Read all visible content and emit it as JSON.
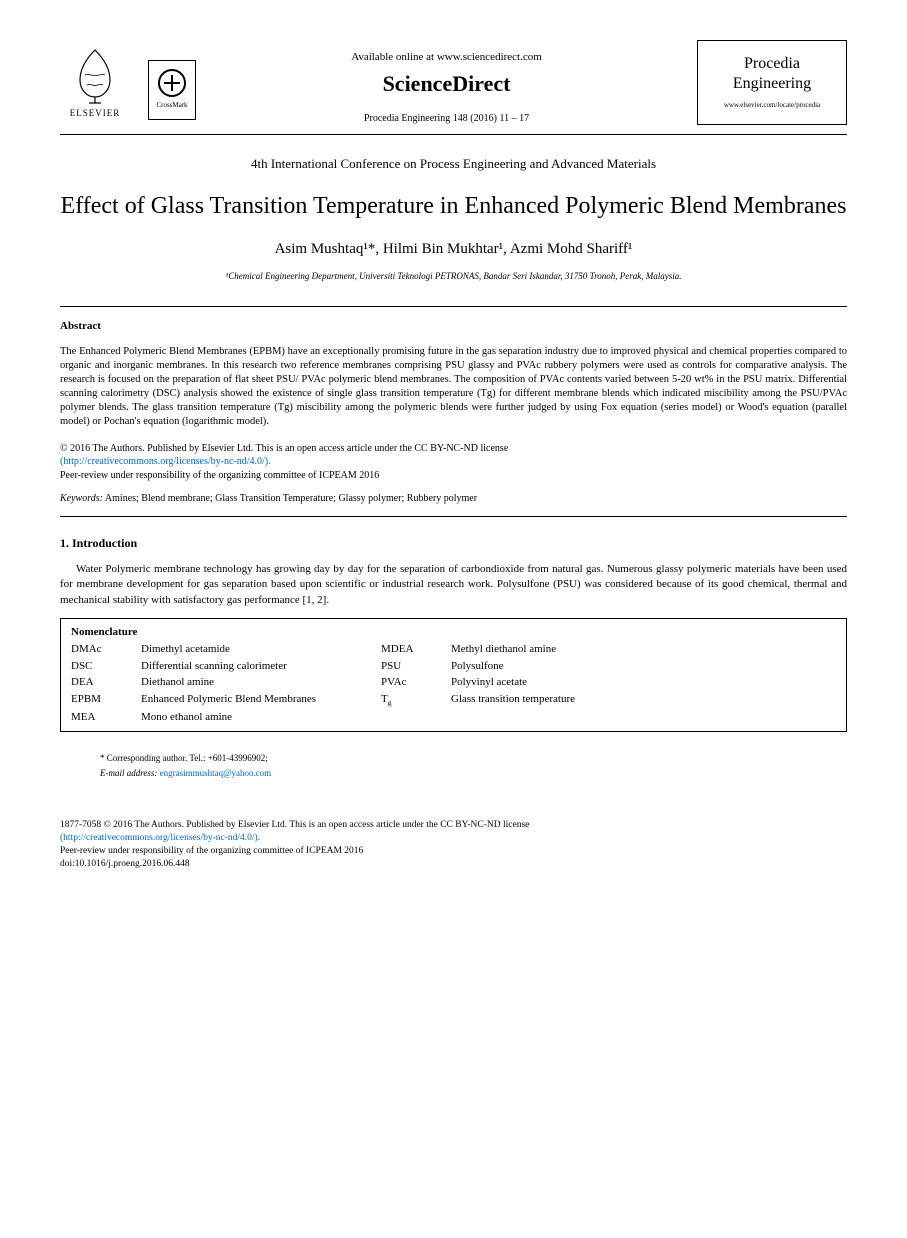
{
  "header": {
    "elsevier_label": "ELSEVIER",
    "crossmark_label": "CrossMark",
    "available_line": "Available online at www.sciencedirect.com",
    "sd_brand": "ScienceDirect",
    "citation": "Procedia Engineering 148 (2016) 11 – 17",
    "journal_name_line1": "Procedia",
    "journal_name_line2": "Engineering",
    "journal_url": "www.elsevier.com/locate/procedia"
  },
  "conference": "4th International Conference on Process Engineering and Advanced Materials",
  "title": "Effect of Glass Transition Temperature in Enhanced Polymeric Blend Membranes",
  "authors": "Asim Mushtaq¹*, Hilmi Bin Mukhtar¹, Azmi Mohd Shariff¹",
  "affiliation": "¹Chemical Engineering Department, Universiti Teknologi PETRONAS, Bandar Seri Iskandar, 31750 Tronoh, Perak, Malaysia.",
  "abstract_heading": "Abstract",
  "abstract_text": "The Enhanced Polymeric Blend Membranes (EPBM) have an exceptionally promising future in the gas separation industry due to improved physical and chemical properties compared to organic and inorganic membranes. In this research two reference membranes comprising PSU glassy and PVAc rubbery polymers were used as controls for comparative analysis. The research is focused on the preparation of flat sheet PSU/ PVAc polymeric blend membranes. The composition of PVAc contents varied between 5-20 wt% in the PSU matrix. Differential scanning calorimetry (DSC) analysis showed the existence of single glass transition temperature (Tg) for different membrane blends which indicated miscibility among the PSU/PVAc polymer blends. The glass transition temperature (Tg) miscibility among the polymeric blends were further judged by using Fox equation (series model) or Wood's equation (parallel model) or Pochan's equation (logarithmic model).",
  "copyright_line1": "© 2016 The Authors. Published by Elsevier Ltd. This is an open access article under the CC BY-NC-ND license",
  "license_url": "(http://creativecommons.org/licenses/by-nc-nd/4.0/).",
  "peer_review": "Peer-review under responsibility of the organizing committee of ICPEAM 2016",
  "keywords_label": "Keywords:",
  "keywords_text": " Amines; Blend membrane; Glass Transition Temperature; Glassy polymer; Rubbery polymer",
  "intro_heading": "1.   Introduction",
  "intro_text": "Water Polymeric membrane technology has growing day by day for the separation of carbondioxide from natural gas. Numerous glassy polymeric materials have been used for membrane development for gas separation based upon scientific or industrial research work. Polysulfone (PSU) was considered because of its good chemical, thermal and mechanical stability with satisfactory gas performance [1, 2].",
  "nomenclature": {
    "title": "Nomenclature",
    "rows": [
      {
        "a1": "DMAc",
        "d1": "Dimethyl acetamide",
        "a2": "MDEA",
        "d2": "Methyl diethanol amine"
      },
      {
        "a1": "DSC",
        "d1": "Differential scanning calorimeter",
        "a2": "PSU",
        "d2": "Polysulfone"
      },
      {
        "a1": "DEA",
        "d1": "Diethanol amine",
        "a2": "PVAc",
        "d2": "Polyvinyl acetate"
      },
      {
        "a1": "EPBM",
        "d1": "Enhanced Polymeric Blend Membranes",
        "a2": "Tg",
        "d2": "Glass transition temperature"
      },
      {
        "a1": "MEA",
        "d1": "Mono ethanol amine",
        "a2": "",
        "d2": ""
      }
    ]
  },
  "corresponding": "* Corresponding author. Tel.: +601-43996902;",
  "email_label": "E-mail address: ",
  "email": "engrasimmushtaq@yahoo.com",
  "footer": {
    "issn_line": "1877-7058 © 2016 The Authors. Published by Elsevier Ltd. This is an open access article under the CC BY-NC-ND license",
    "license_url": "(http://creativecommons.org/licenses/by-nc-nd/4.0/).",
    "peer": "Peer-review under responsibility of the organizing committee of ICPEAM 2016",
    "doi": "doi:10.1016/j.proeng.2016.06.448"
  },
  "colors": {
    "text": "#000000",
    "link": "#0066cc",
    "background": "#ffffff",
    "border": "#000000"
  },
  "typography": {
    "body_font": "Times New Roman",
    "title_size_pt": 24,
    "author_size_pt": 15,
    "body_size_pt": 11,
    "abstract_size_pt": 10.5,
    "footer_size_pt": 9.5
  }
}
